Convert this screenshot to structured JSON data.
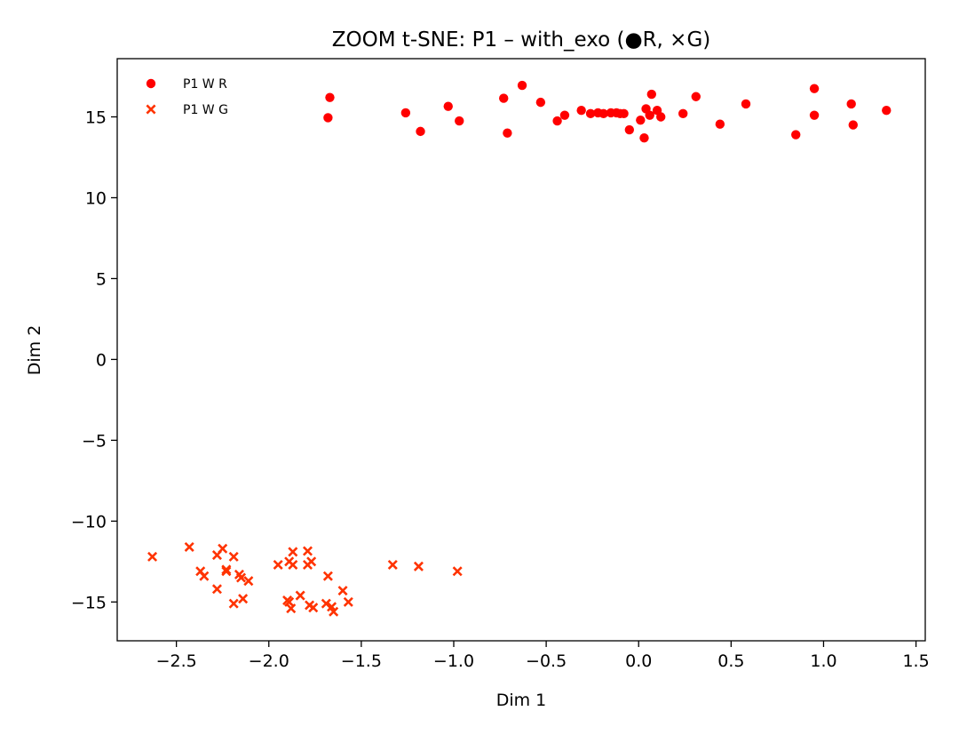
{
  "chart_data": {
    "type": "scatter",
    "title": "ZOOM t-SNE: P1 – with_exo (●R, ×G)",
    "xlabel": "Dim 1",
    "ylabel": "Dim 2",
    "xlim": [
      -2.82,
      1.55
    ],
    "ylim": [
      -17.4,
      18.6
    ],
    "grid": false,
    "legend_position": "top-left",
    "x_ticks": [
      -2.5,
      -2.0,
      -1.5,
      -1.0,
      -0.5,
      0.0,
      0.5,
      1.0,
      1.5
    ],
    "x_tick_labels": [
      "−2.5",
      "−2.0",
      "−1.5",
      "−1.0",
      "−0.5",
      "0.0",
      "0.5",
      "1.0",
      "1.5"
    ],
    "y_ticks": [
      -15,
      -10,
      -5,
      0,
      5,
      10,
      15
    ],
    "y_tick_labels": [
      "−15",
      "−10",
      "−5",
      "0",
      "5",
      "10",
      "15"
    ],
    "series": [
      {
        "name": "P1 W R",
        "marker": "circle",
        "color": "#ff0000",
        "points": [
          [
            -1.67,
            16.2
          ],
          [
            -1.68,
            14.95
          ],
          [
            -1.26,
            15.25
          ],
          [
            -1.18,
            14.1
          ],
          [
            -1.03,
            15.65
          ],
          [
            -0.97,
            14.75
          ],
          [
            -0.73,
            16.15
          ],
          [
            -0.71,
            14.0
          ],
          [
            -0.63,
            16.95
          ],
          [
            -0.53,
            15.9
          ],
          [
            -0.44,
            14.75
          ],
          [
            -0.4,
            15.1
          ],
          [
            -0.31,
            15.4
          ],
          [
            -0.26,
            15.2
          ],
          [
            -0.22,
            15.25
          ],
          [
            -0.19,
            15.2
          ],
          [
            -0.15,
            15.25
          ],
          [
            -0.12,
            15.25
          ],
          [
            -0.1,
            15.2
          ],
          [
            -0.08,
            15.2
          ],
          [
            -0.05,
            14.2
          ],
          [
            0.01,
            14.8
          ],
          [
            0.03,
            13.7
          ],
          [
            0.04,
            15.5
          ],
          [
            0.06,
            15.1
          ],
          [
            0.07,
            16.4
          ],
          [
            0.1,
            15.4
          ],
          [
            0.12,
            15.0
          ],
          [
            0.24,
            15.2
          ],
          [
            0.31,
            16.25
          ],
          [
            0.44,
            14.55
          ],
          [
            0.58,
            15.8
          ],
          [
            0.85,
            13.9
          ],
          [
            0.95,
            16.75
          ],
          [
            0.95,
            15.1
          ],
          [
            1.15,
            15.8
          ],
          [
            1.16,
            14.5
          ],
          [
            1.34,
            15.4
          ]
        ]
      },
      {
        "name": "P1 W G",
        "marker": "x",
        "color": "#ff3300",
        "points": [
          [
            -2.63,
            -12.2
          ],
          [
            -2.43,
            -11.6
          ],
          [
            -2.37,
            -13.1
          ],
          [
            -2.35,
            -13.4
          ],
          [
            -2.28,
            -12.1
          ],
          [
            -2.28,
            -14.2
          ],
          [
            -2.25,
            -11.7
          ],
          [
            -2.23,
            -13.0
          ],
          [
            -2.23,
            -13.1
          ],
          [
            -2.19,
            -12.2
          ],
          [
            -2.19,
            -15.1
          ],
          [
            -2.16,
            -13.3
          ],
          [
            -2.15,
            -13.5
          ],
          [
            -2.14,
            -14.8
          ],
          [
            -2.11,
            -13.7
          ],
          [
            -1.95,
            -12.7
          ],
          [
            -1.9,
            -14.9
          ],
          [
            -1.89,
            -15.0
          ],
          [
            -1.89,
            -12.5
          ],
          [
            -1.88,
            -15.4
          ],
          [
            -1.87,
            -12.7
          ],
          [
            -1.87,
            -11.9
          ],
          [
            -1.83,
            -14.6
          ],
          [
            -1.79,
            -11.85
          ],
          [
            -1.79,
            -12.7
          ],
          [
            -1.78,
            -15.2
          ],
          [
            -1.77,
            -12.5
          ],
          [
            -1.76,
            -15.35
          ],
          [
            -1.69,
            -15.1
          ],
          [
            -1.68,
            -13.4
          ],
          [
            -1.66,
            -15.3
          ],
          [
            -1.65,
            -15.6
          ],
          [
            -1.6,
            -14.3
          ],
          [
            -1.57,
            -15.0
          ],
          [
            -1.33,
            -12.7
          ],
          [
            -1.19,
            -12.8
          ],
          [
            -0.98,
            -13.1
          ]
        ]
      }
    ]
  }
}
